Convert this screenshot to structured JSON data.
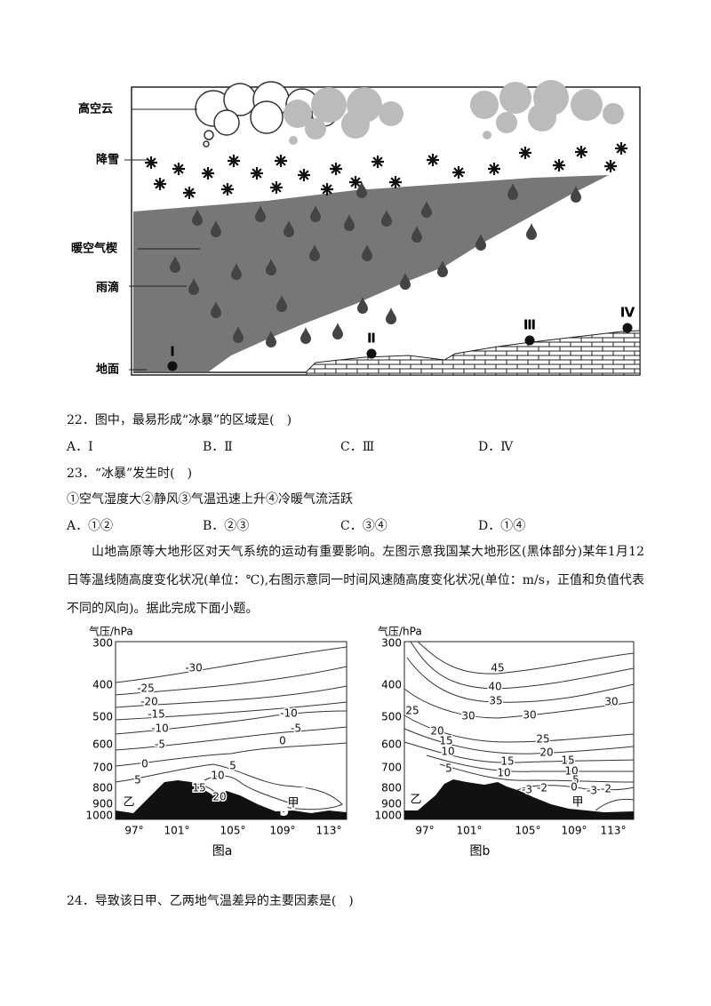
{
  "figure1": {
    "labels": {
      "cloud": "高空云",
      "snow": "降雪",
      "wedge": "暖空气楔",
      "raindrop": "雨滴",
      "ground": "地面"
    },
    "sites": [
      "Ⅰ",
      "Ⅱ",
      "Ⅲ",
      "Ⅳ"
    ]
  },
  "questions": [
    {
      "stem": "22．图中，最易形成“冰暴”的区域是(　)",
      "options": [
        "A．Ⅰ",
        "B．Ⅱ",
        "C．Ⅲ",
        "D．Ⅳ"
      ]
    },
    {
      "stem": "23．“冰暴”发生时(　)",
      "statement": "①空气湿度大②静风③气温迅速上升④冷暖气流活跃",
      "options": [
        "A．①②",
        "B．②③",
        "C．③④",
        "D．①④"
      ]
    },
    {
      "stem": "24．导致该日甲、乙两地气温差异的主要因素是(　)"
    }
  ],
  "passage": "山地高原等大地形区对天气系统的运动有重要影响。左图示意我国某大地形区(黑体部分)某年1月12日等温线随高度变化状况(单位：℃),右图示意同一时间风速随高度变化状况(单位：m/s，正值和负值代表不同的风向)。据此完成下面小题。",
  "figures": [
    {
      "y_label": "气压/hPa",
      "y_ticks": [
        "300",
        "400",
        "500",
        "600",
        "700",
        "800",
        "900",
        "1000"
      ],
      "x_ticks": [
        "97°",
        "101°",
        "105°",
        "109°",
        "113°"
      ],
      "contour_labels": [
        "-30",
        "-25",
        "-20",
        "-15",
        "-10",
        "-5",
        "0",
        "5",
        "5",
        "-10",
        "-5",
        "0",
        "10",
        "15",
        "20",
        "5",
        "5"
      ],
      "place_labels": [
        "乙",
        "甲"
      ],
      "caption": "图a"
    },
    {
      "y_label": "气压/hPa",
      "y_ticks": [
        "300",
        "400",
        "500",
        "600",
        "700",
        "800",
        "900",
        "1000"
      ],
      "x_ticks": [
        "97°",
        "101°",
        "105°",
        "109°",
        "113°"
      ],
      "contour_labels": [
        "45",
        "40",
        "35",
        "25",
        "30",
        "30",
        "30",
        "20",
        "15",
        "10",
        "5",
        "25",
        "20",
        "15",
        "15",
        "10",
        "10",
        "5",
        "0",
        "-3",
        "-2",
        "-3",
        "-2"
      ],
      "place_labels": [
        "乙",
        "甲"
      ],
      "caption": "图b"
    }
  ]
}
